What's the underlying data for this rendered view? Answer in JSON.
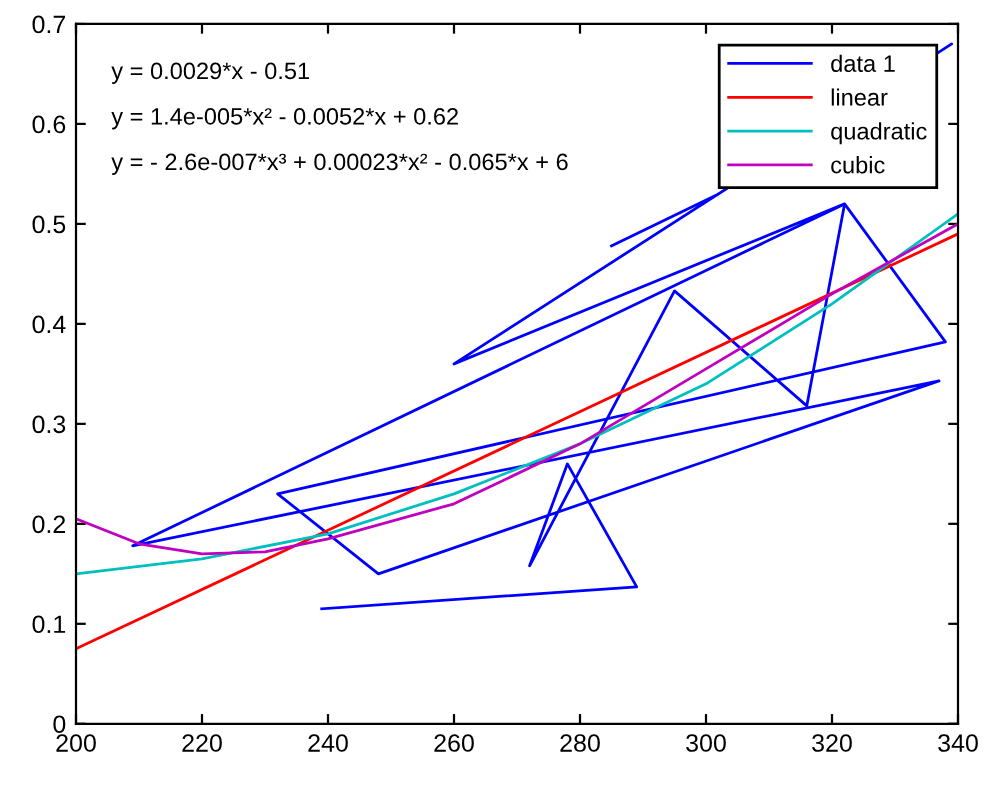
{
  "chart_data": {
    "type": "line",
    "xlim": [
      200,
      340
    ],
    "ylim": [
      0,
      0.7
    ],
    "xticks": [
      200,
      220,
      240,
      260,
      280,
      300,
      320,
      340
    ],
    "yticks": [
      0,
      0.1,
      0.2,
      0.3,
      0.4,
      0.5,
      0.6,
      0.7
    ],
    "grid": false,
    "legend": "top right",
    "marker": "none",
    "line_style": "solid",
    "annotations": [
      "y = 0.0029*x - 0.51",
      "y = 1.4e-005*x² - 0.0052*x + 0.62",
      "y = - 2.6e-007*x³ + 0.00023*x² - 0.065*x + 6"
    ],
    "series": [
      {
        "name": "data 1",
        "color": "#0000ff",
        "x": [
          239,
          289,
          278,
          272,
          295,
          316,
          322,
          338,
          232,
          248,
          337,
          209,
          322,
          260,
          339,
          302,
          285
        ],
        "values": [
          0.115,
          0.137,
          0.26,
          0.158,
          0.433,
          0.318,
          0.52,
          0.382,
          0.23,
          0.15,
          0.343,
          0.178,
          0.52,
          0.36,
          0.68,
          0.53,
          0.478
        ]
      },
      {
        "name": "linear",
        "color": "#ff0000",
        "x": [
          200,
          340
        ],
        "values": [
          0.075,
          0.49
        ]
      },
      {
        "name": "quadratic",
        "color": "#00bfbf",
        "x": [
          200,
          220,
          240,
          260,
          280,
          300,
          320,
          340
        ],
        "values": [
          0.15,
          0.165,
          0.19,
          0.23,
          0.28,
          0.34,
          0.42,
          0.51
        ]
      },
      {
        "name": "cubic",
        "color": "#bf00bf",
        "x": [
          200,
          210,
          220,
          230,
          240,
          260,
          280,
          300,
          320,
          340
        ],
        "values": [
          0.205,
          0.18,
          0.17,
          0.172,
          0.185,
          0.22,
          0.28,
          0.355,
          0.43,
          0.5
        ]
      }
    ]
  }
}
